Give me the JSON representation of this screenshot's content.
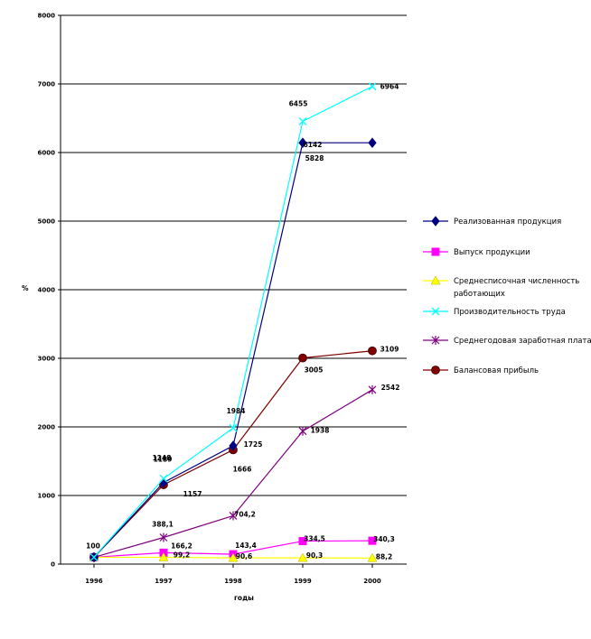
{
  "chart_data": {
    "type": "line",
    "xlabel": "годы",
    "ylabel": "%",
    "ylim": [
      0,
      8000
    ],
    "yticks": [
      0,
      1000,
      2000,
      3000,
      4000,
      5000,
      6000,
      7000,
      8000
    ],
    "categories": [
      "1996",
      "1997",
      "1998",
      "1999",
      "2000"
    ],
    "grid": "horizontal",
    "legend_position": "right",
    "series": [
      {
        "name": "Реализованная продукция",
        "values": [
          100,
          1189,
          1725,
          6142,
          6142
        ],
        "color": "#000080",
        "marker": "diamond",
        "data_labels": [
          null,
          "1189",
          "1725",
          "6142",
          null
        ]
      },
      {
        "name": "Выпуск продукции",
        "values": [
          100,
          166.2,
          143.4,
          334.5,
          340.3
        ],
        "color": "#ff00ff",
        "marker": "square",
        "data_labels": [
          null,
          "166,2",
          "143,4",
          "334,5",
          "340,3"
        ]
      },
      {
        "name": "Среднесписочная численность работающих",
        "values": [
          100,
          99.2,
          90.6,
          90.3,
          88.2
        ],
        "color": "#ffff00",
        "marker": "triangle",
        "data_labels": [
          null,
          "99,2",
          "90,6",
          "90,3",
          "88,2"
        ]
      },
      {
        "name": "Производительность труда",
        "values": [
          100,
          1248,
          1984,
          6455,
          6964
        ],
        "color": "#00ffff",
        "marker": "x",
        "data_labels": [
          "100",
          "1248",
          "1984",
          "6455",
          "6964"
        ]
      },
      {
        "name": "Среднегодовая заработная плата",
        "values": [
          100,
          388.1,
          704.2,
          1938,
          2542
        ],
        "color": "#800080",
        "marker": "star",
        "data_labels": [
          null,
          "388,1",
          "704,2",
          "1938",
          "2542"
        ]
      },
      {
        "name": "Балансовая прибыль",
        "values": [
          100,
          1157,
          1666,
          3005,
          3109
        ],
        "color": "#800000",
        "marker": "circle",
        "data_labels": [
          null,
          "1157",
          "1666",
          "3005",
          "3109"
        ]
      }
    ],
    "extra_labels": [
      "5828"
    ]
  }
}
